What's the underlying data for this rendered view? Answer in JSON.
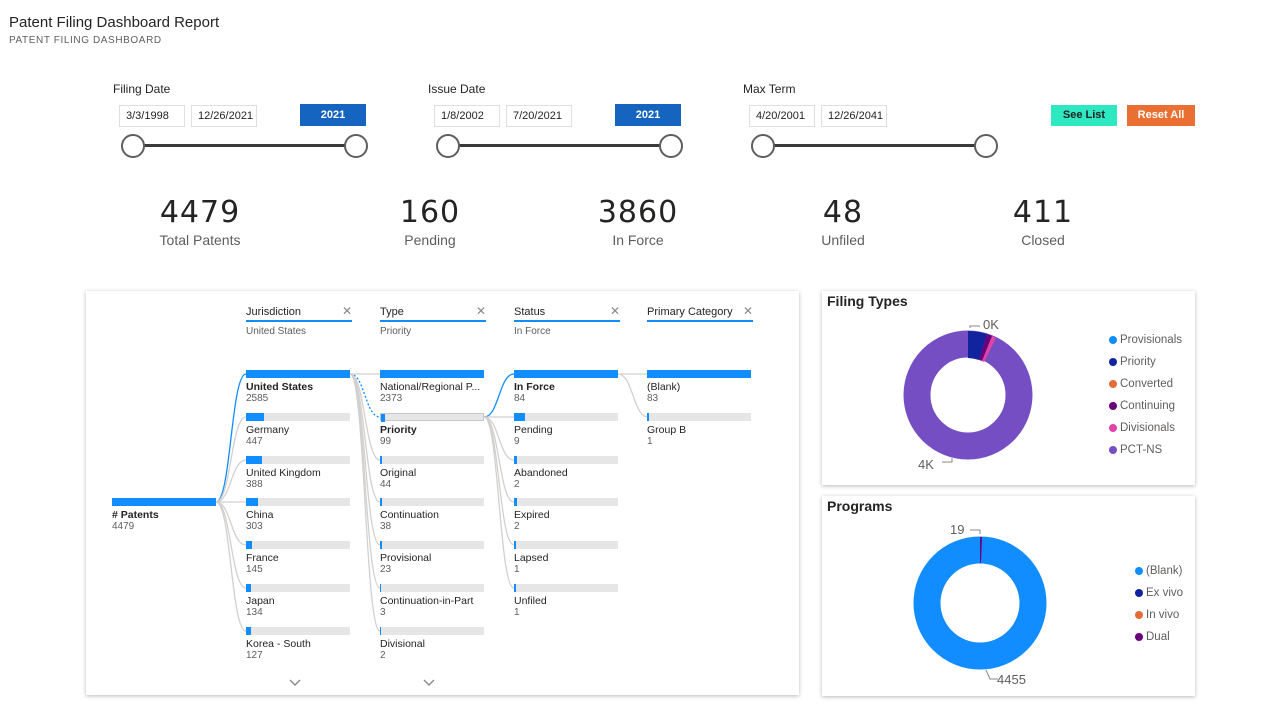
{
  "header": {
    "title": "Patent Filing Dashboard Report",
    "subtitle": "PATENT FILING DASHBOARD"
  },
  "slicers": [
    {
      "label": "Filing Date",
      "from": "3/3/1998",
      "to": "12/26/2021",
      "year": "2021"
    },
    {
      "label": "Issue Date",
      "from": "1/8/2002",
      "to": "7/20/2021",
      "year": "2021"
    },
    {
      "label": "Max Term",
      "from": "4/20/2001",
      "to": "12/26/2041"
    }
  ],
  "buttons": {
    "see_list": "See List",
    "reset_all": "Reset All"
  },
  "kpis": [
    {
      "value": "4479",
      "label": "Total Patents"
    },
    {
      "value": "160",
      "label": "Pending"
    },
    {
      "value": "3860",
      "label": "In Force"
    },
    {
      "value": "48",
      "label": "Unfiled"
    },
    {
      "value": "411",
      "label": "Closed"
    }
  ],
  "decomposition": {
    "root": {
      "label": "# Patents",
      "value": "4479"
    },
    "columns": [
      {
        "header": "Jurisdiction",
        "selected": "United States",
        "nodes": [
          {
            "label": "United States",
            "value": "2585"
          },
          {
            "label": "Germany",
            "value": "447"
          },
          {
            "label": "United Kingdom",
            "value": "388"
          },
          {
            "label": "China",
            "value": "303"
          },
          {
            "label": "France",
            "value": "145"
          },
          {
            "label": "Japan",
            "value": "134"
          },
          {
            "label": "Korea - South",
            "value": "127"
          }
        ]
      },
      {
        "header": "Type",
        "selected": "Priority",
        "nodes": [
          {
            "label": "National/Regional P...",
            "value": "2373"
          },
          {
            "label": "Priority",
            "value": "99"
          },
          {
            "label": "Original",
            "value": "44"
          },
          {
            "label": "Continuation",
            "value": "38"
          },
          {
            "label": "Provisional",
            "value": "23"
          },
          {
            "label": "Continuation-in-Part",
            "value": "3"
          },
          {
            "label": "Divisional",
            "value": "2"
          }
        ]
      },
      {
        "header": "Status",
        "selected": "In Force",
        "nodes": [
          {
            "label": "In Force",
            "value": "84"
          },
          {
            "label": "Pending",
            "value": "9"
          },
          {
            "label": "Abandoned",
            "value": "2"
          },
          {
            "label": "Expired",
            "value": "2"
          },
          {
            "label": "Lapsed",
            "value": "1"
          },
          {
            "label": "Unfiled",
            "value": "1"
          }
        ]
      },
      {
        "header": "Primary Category",
        "selected": "",
        "nodes": [
          {
            "label": "(Blank)",
            "value": "83"
          },
          {
            "label": "Group B",
            "value": "1"
          }
        ]
      }
    ]
  },
  "filing_types": {
    "title": "Filing Types",
    "legend": [
      {
        "label": "Provisionals",
        "color": "#118dff"
      },
      {
        "label": "Priority",
        "color": "#12239e"
      },
      {
        "label": "Converted",
        "color": "#e66c37"
      },
      {
        "label": "Continuing",
        "color": "#6b007b"
      },
      {
        "label": "Divisionals",
        "color": "#e044a7"
      },
      {
        "label": "PCT-NS",
        "color": "#744ec2"
      }
    ],
    "label_top": "0K",
    "label_bottom": "4K"
  },
  "programs": {
    "title": "Programs",
    "legend": [
      {
        "label": "(Blank)",
        "color": "#118dff"
      },
      {
        "label": "Ex vivo",
        "color": "#12239e"
      },
      {
        "label": "In vivo",
        "color": "#e66c37"
      },
      {
        "label": "Dual",
        "color": "#6b007b"
      }
    ],
    "label_top": "19",
    "label_bottom": "4455"
  }
}
